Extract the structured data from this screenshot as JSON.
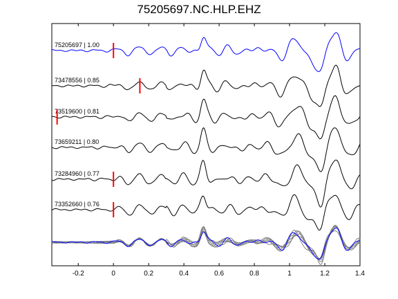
{
  "chart_data": {
    "type": "line",
    "title": "75205697.NC.HLP.EHZ",
    "xlabel": "",
    "ylabel": "",
    "xlim": [
      -0.35,
      1.4
    ],
    "xticks": [
      -0.2,
      0,
      0.2,
      0.4,
      0.6,
      0.8,
      1,
      1.2,
      1.4
    ],
    "xtick_labels": [
      "-0.2",
      "0",
      "0.2",
      "0.4",
      "0.6",
      "0.8",
      "1",
      "1.2",
      "1.4"
    ],
    "grid": false,
    "colors": {
      "primary": "#0000ff",
      "secondary": "#000000",
      "stack": "#808080",
      "pick": "#ff0000"
    },
    "series": [
      {
        "name": "75205697 | 1.00",
        "pick_time": 0.0
      },
      {
        "name": "73478556 | 0.85",
        "pick_time": 0.15
      },
      {
        "name": "73519600 | 0.81",
        "pick_time": -0.32
      },
      {
        "name": "73659211 | 0.80",
        "pick_time": null
      },
      {
        "name": "73284960 | 0.77",
        "pick_time": 0.0
      },
      {
        "name": "73352660 | 0.76",
        "pick_time": 0.0
      }
    ]
  }
}
